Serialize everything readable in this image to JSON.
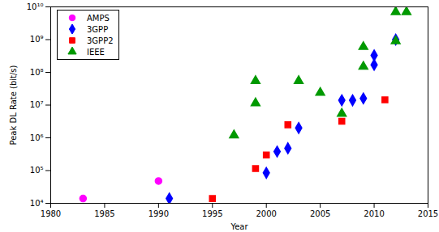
{
  "chart_data": {
    "type": "scatter",
    "xlabel": "Year",
    "ylabel": "Peak DL Rate (bit/s)",
    "log": "y",
    "grid": false,
    "legend": "upper left",
    "xlim": [
      1980,
      2015
    ],
    "xticks": [
      1980,
      1985,
      1990,
      1995,
      2000,
      2005,
      2010,
      2015
    ],
    "ylim": [
      10000,
      10000000000
    ],
    "yticks": [
      {
        "value": 10000,
        "label": "10⁴"
      },
      {
        "value": 100000,
        "label": "10⁵"
      },
      {
        "value": 1000000,
        "label": "10⁶"
      },
      {
        "value": 10000000,
        "label": "10⁷"
      },
      {
        "value": 100000000,
        "label": "10⁸"
      },
      {
        "value": 1000000000,
        "label": "10⁹"
      },
      {
        "value": 10000000000,
        "label": "10¹⁰"
      }
    ],
    "series": [
      {
        "name": "AMPS",
        "color": "#ff00ff",
        "marker": "circle",
        "x": [
          1983,
          1990
        ],
        "values": [
          14000,
          48000
        ]
      },
      {
        "name": "3GPP",
        "color": "#0000ff",
        "marker": "diamond",
        "x": [
          1991,
          2000,
          2001,
          2002,
          2003,
          2007,
          2008,
          2009,
          2010,
          2010,
          2012
        ],
        "values": [
          14000,
          85000,
          380000,
          480000,
          2000000,
          14000000,
          14000000,
          16000000,
          170000000,
          330000000,
          1000000000
        ]
      },
      {
        "name": "3GPP2",
        "color": "#ff0000",
        "marker": "square",
        "x": [
          1995,
          1999,
          2000,
          2002,
          2007,
          2011
        ],
        "values": [
          14000,
          115000,
          300000,
          2500000,
          3200000,
          14500000
        ]
      },
      {
        "name": "IEEE",
        "color": "#009900",
        "marker": "triangle",
        "x": [
          1997,
          1999,
          1999,
          2003,
          2005,
          2007,
          2009,
          2009,
          2012,
          2012,
          2013
        ],
        "values": [
          1200000,
          11500000,
          55000000,
          55000000,
          24000000,
          5500000,
          150000000,
          600000000,
          7000000000,
          900000000,
          7000000000
        ]
      }
    ]
  }
}
